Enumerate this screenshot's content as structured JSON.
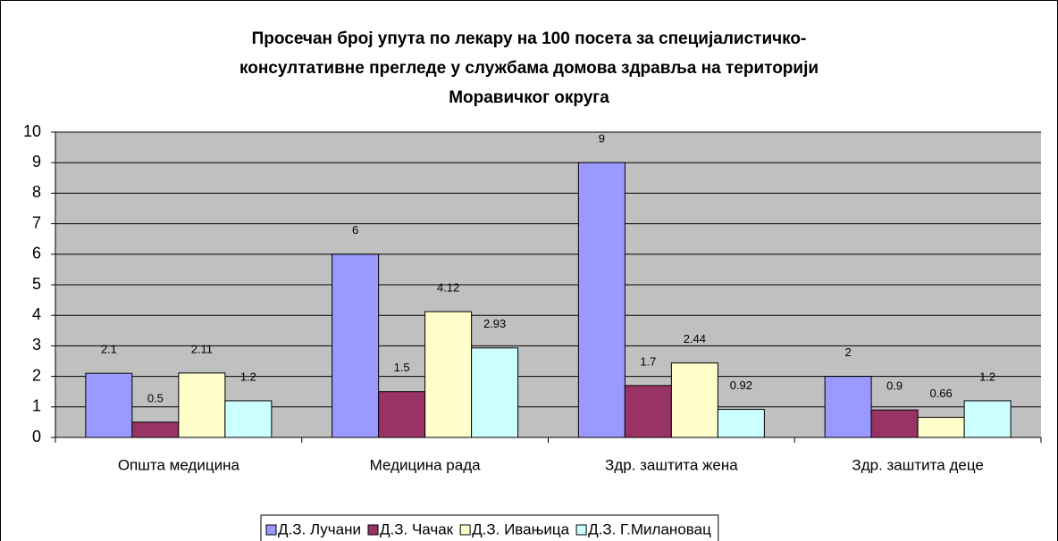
{
  "chart_data": {
    "type": "bar",
    "title": [
      "Просечан број упута по лекару на 100 посета за специјалистичко-",
      "консултативне прегледе у службама домова здравља на територији",
      "Моравичког округа"
    ],
    "categories": [
      "Општа медицина",
      "Медицина рада",
      "Здр. заштита жена",
      "Здр. заштита деце"
    ],
    "series": [
      {
        "name": "Д.З. Лучани",
        "color": "#9999ff",
        "values": [
          2.1,
          6,
          9,
          2
        ]
      },
      {
        "name": "Д.З. Чачак",
        "color": "#993366",
        "values": [
          0.5,
          1.5,
          1.7,
          0.9
        ]
      },
      {
        "name": "Д.З. Ивањица",
        "color": "#ffffcc",
        "values": [
          2.11,
          4.12,
          2.44,
          0.66
        ]
      },
      {
        "name": "Д.З. Г.Милановац",
        "color": "#ccffff",
        "values": [
          1.2,
          2.93,
          0.92,
          1.2
        ]
      }
    ],
    "ylim": [
      0,
      10
    ],
    "yticks": [
      0,
      1,
      2,
      3,
      4,
      5,
      6,
      7,
      8,
      9,
      10
    ],
    "grid": true,
    "legend": "bottom"
  }
}
